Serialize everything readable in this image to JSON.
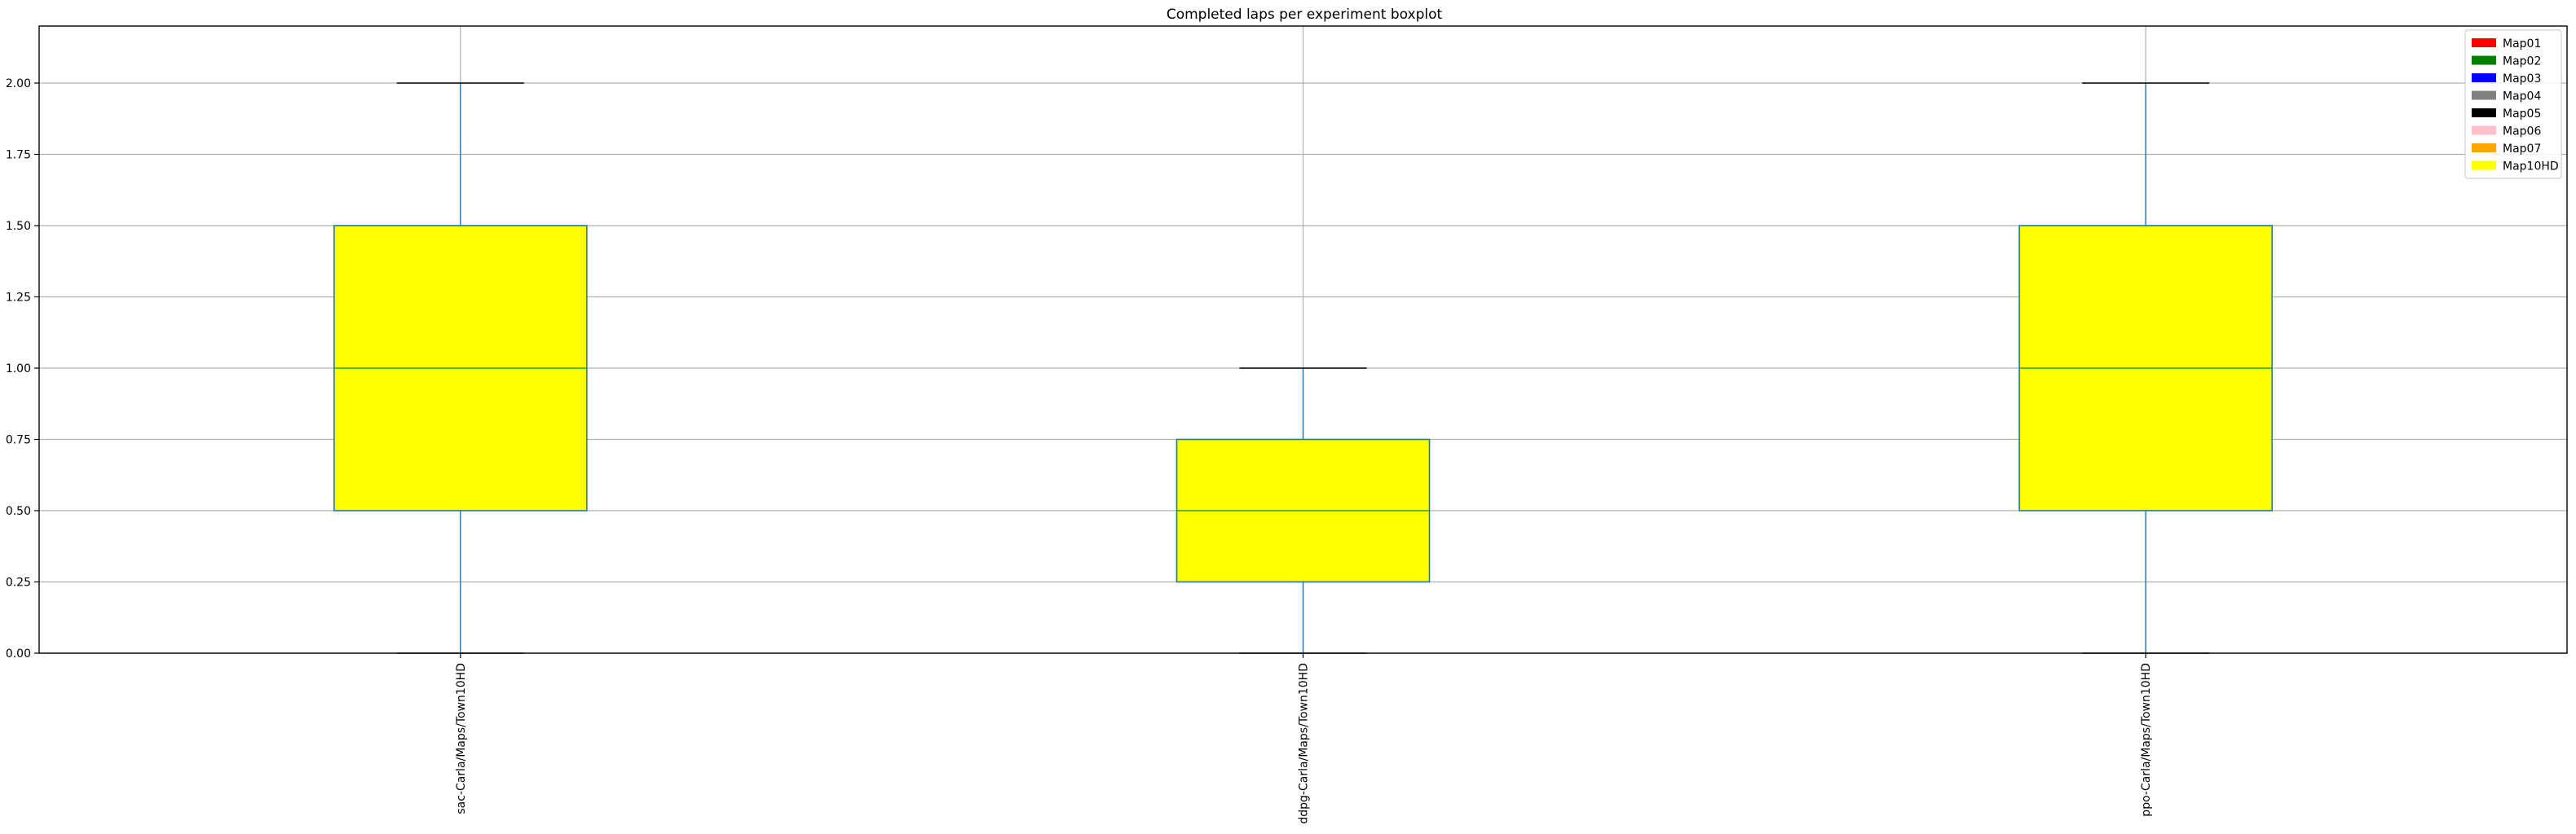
{
  "chart_data": {
    "type": "boxplot",
    "title": "Completed laps per experiment boxplot",
    "xlabel": "",
    "ylabel": "",
    "ylim": [
      0,
      2.2
    ],
    "yticks": [
      0,
      0.25,
      0.5,
      0.75,
      1.0,
      1.25,
      1.5,
      1.75,
      2.0
    ],
    "ytick_labels": [
      "0.00",
      "0.25",
      "0.50",
      "0.75",
      "1.00",
      "1.25",
      "1.50",
      "1.75",
      "2.00"
    ],
    "grid": true,
    "legend_position": "top-right",
    "box_color": "#ffff00",
    "box_edge_color": "#1f77b4",
    "median_color": "#2ca02c",
    "whisker_color": "#1f77b4",
    "cap_color": "#000000",
    "categories": [
      "sac-Carla/Maps/Town10HD",
      "ddpg-Carla/Maps/Town10HD",
      "ppo-Carla/Maps/Town10HD"
    ],
    "boxes": [
      {
        "category": "sac-Carla/Maps/Town10HD",
        "min": 0.0,
        "q1": 0.5,
        "median": 1.0,
        "q3": 1.5,
        "max": 2.0
      },
      {
        "category": "ddpg-Carla/Maps/Town10HD",
        "min": 0.0,
        "q1": 0.25,
        "median": 0.5,
        "q3": 0.75,
        "max": 1.0
      },
      {
        "category": "ppo-Carla/Maps/Town10HD",
        "min": 0.0,
        "q1": 0.5,
        "median": 1.0,
        "q3": 1.5,
        "max": 2.0
      }
    ],
    "legend": [
      {
        "label": "Map01",
        "color": "#ff0000"
      },
      {
        "label": "Map02",
        "color": "#008000"
      },
      {
        "label": "Map03",
        "color": "#0000ff"
      },
      {
        "label": "Map04",
        "color": "#808080"
      },
      {
        "label": "Map05",
        "color": "#000000"
      },
      {
        "label": "Map06",
        "color": "#ffc0cb"
      },
      {
        "label": "Map07",
        "color": "#ffa500"
      },
      {
        "label": "Map10HD",
        "color": "#ffff00"
      }
    ]
  }
}
